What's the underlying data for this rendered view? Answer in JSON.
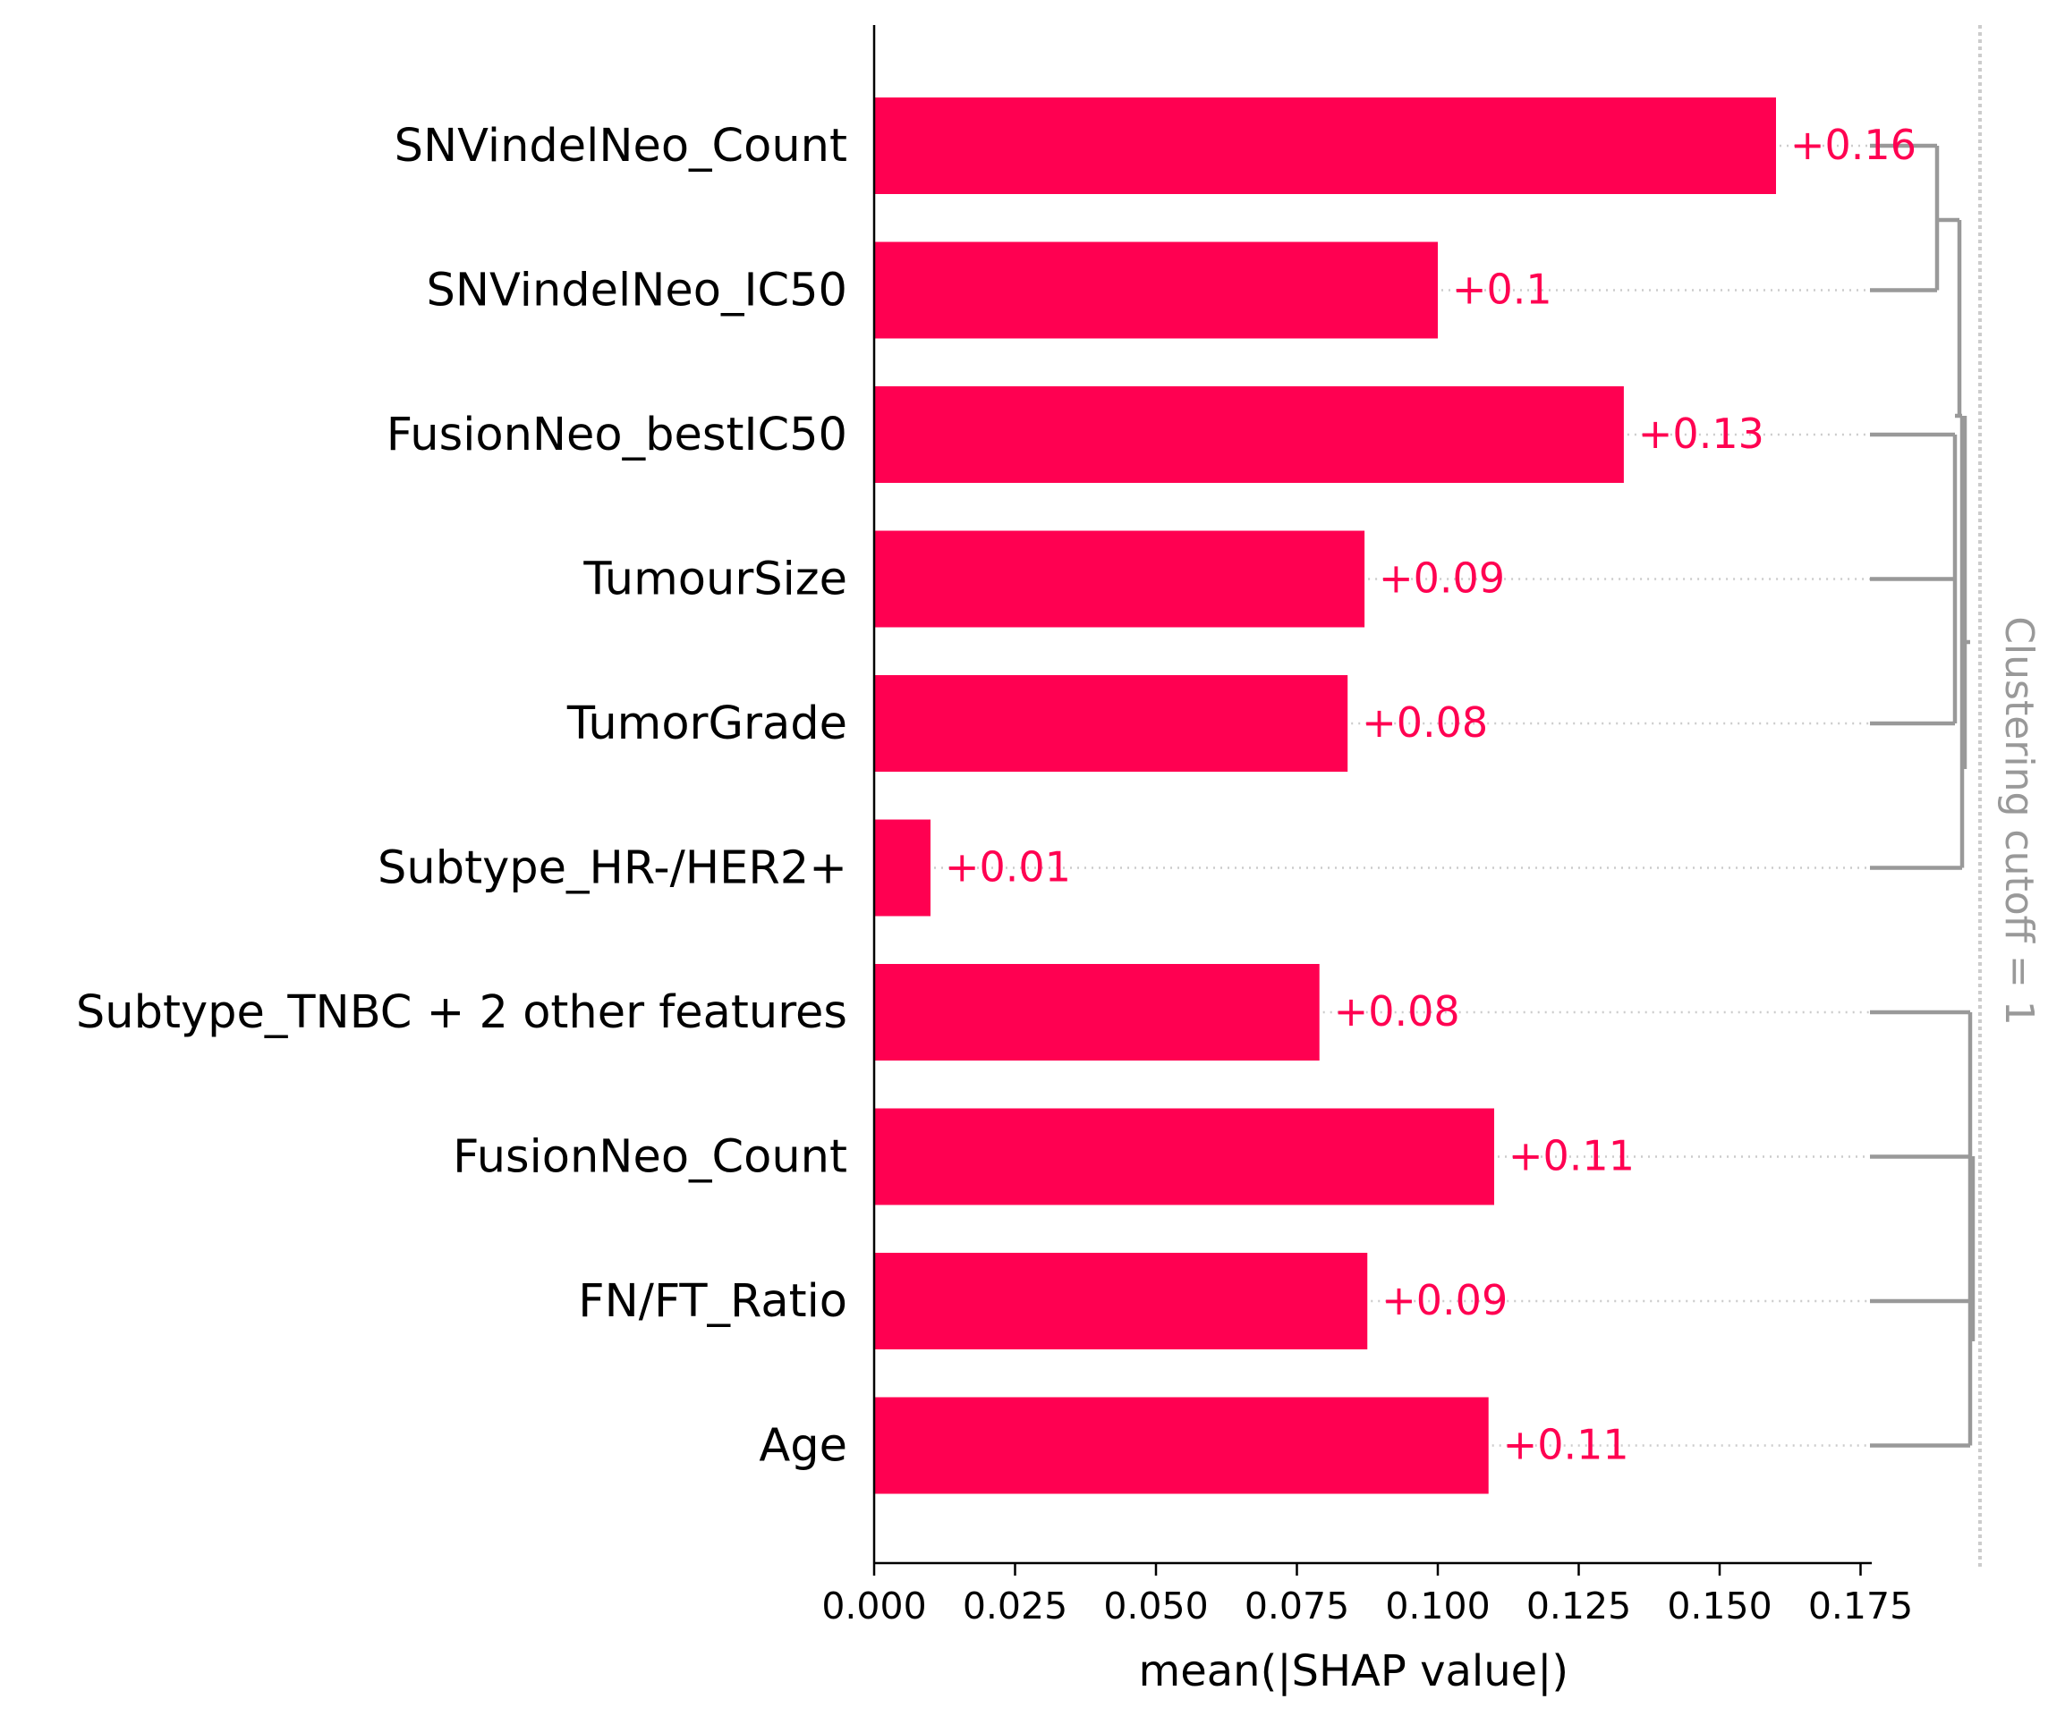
{
  "chart_data": {
    "type": "bar",
    "orientation": "horizontal",
    "categories": [
      "SNVindelNeo_Count",
      "SNVindelNeo_IC50",
      "FusionNeo_bestIC50",
      "TumourSize",
      "TumorGrade",
      "Subtype_HR-/HER2+",
      "Subtype_TNBC + 2 other features",
      "FusionNeo_Count",
      "FN/FT_Ratio",
      "Age"
    ],
    "values": [
      0.16,
      0.1,
      0.133,
      0.087,
      0.084,
      0.01,
      0.079,
      0.11,
      0.0875,
      0.109
    ],
    "value_labels": [
      "+0.16",
      "+0.1",
      "+0.13",
      "+0.09",
      "+0.08",
      "+0.01",
      "+0.08",
      "+0.11",
      "+0.09",
      "+0.11"
    ],
    "xlabel": "mean(|SHAP value|)",
    "xlim": [
      0,
      0.177
    ],
    "xticks": [
      0.0,
      0.025,
      0.05,
      0.075,
      0.1,
      0.125,
      0.15,
      0.175
    ],
    "xtick_labels": [
      "0.000",
      "0.025",
      "0.050",
      "0.075",
      "0.100",
      "0.125",
      "0.150",
      "0.175"
    ],
    "cutoff_label": "Clustering cutoff = 1",
    "grid": false,
    "colors": {
      "bar": "#ff0051",
      "value_text": "#ff0051",
      "dendrogram": "#999999",
      "cutoff_line": "#cccccc",
      "axis": "#000000"
    }
  }
}
